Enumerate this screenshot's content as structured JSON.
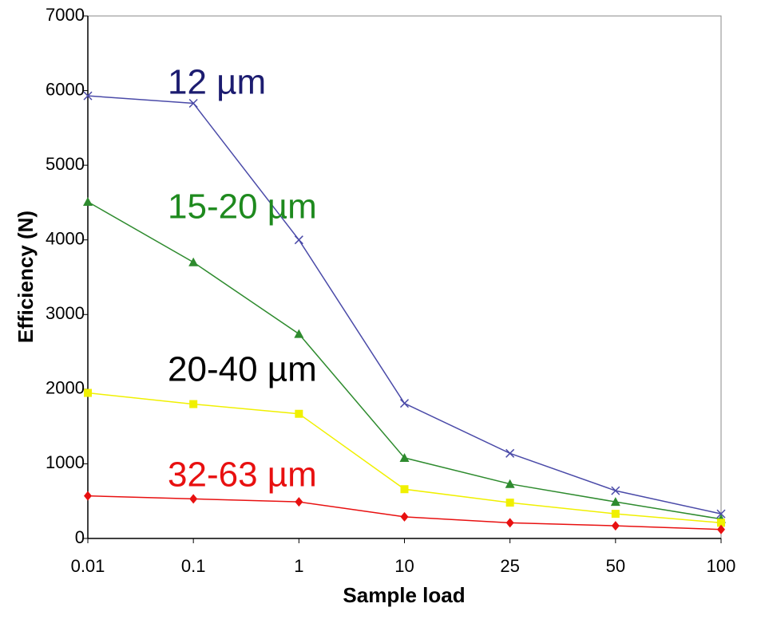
{
  "chart_data": {
    "type": "line",
    "x_label": "Sample load",
    "y_label": "Efficiency (N)",
    "categories": [
      "0.01",
      "0.1",
      "1",
      "10",
      "25",
      "50",
      "100"
    ],
    "ylim": [
      0,
      7000
    ],
    "yticks": [
      0,
      1000,
      2000,
      3000,
      4000,
      5000,
      6000,
      7000
    ],
    "grid": false,
    "series": [
      {
        "name": "12 µm",
        "color": "#4a4aa8",
        "label_color": "#1c1c70",
        "marker": "x",
        "values": [
          5930,
          5830,
          4000,
          1810,
          1140,
          640,
          330
        ]
      },
      {
        "name": "15-20 µm",
        "color": "#2e8b2e",
        "label_color": "#1e8a1e",
        "marker": "triangle",
        "values": [
          4510,
          3700,
          2740,
          1080,
          730,
          490,
          260
        ]
      },
      {
        "name": "20-40 µm",
        "color": "#f0f000",
        "label_color": "#000000",
        "marker": "square",
        "values": [
          1950,
          1800,
          1670,
          660,
          480,
          330,
          210
        ]
      },
      {
        "name": "32-63 µm",
        "color": "#e81010",
        "label_color": "#e81010",
        "marker": "diamond",
        "values": [
          570,
          530,
          490,
          290,
          210,
          170,
          120
        ]
      }
    ]
  }
}
